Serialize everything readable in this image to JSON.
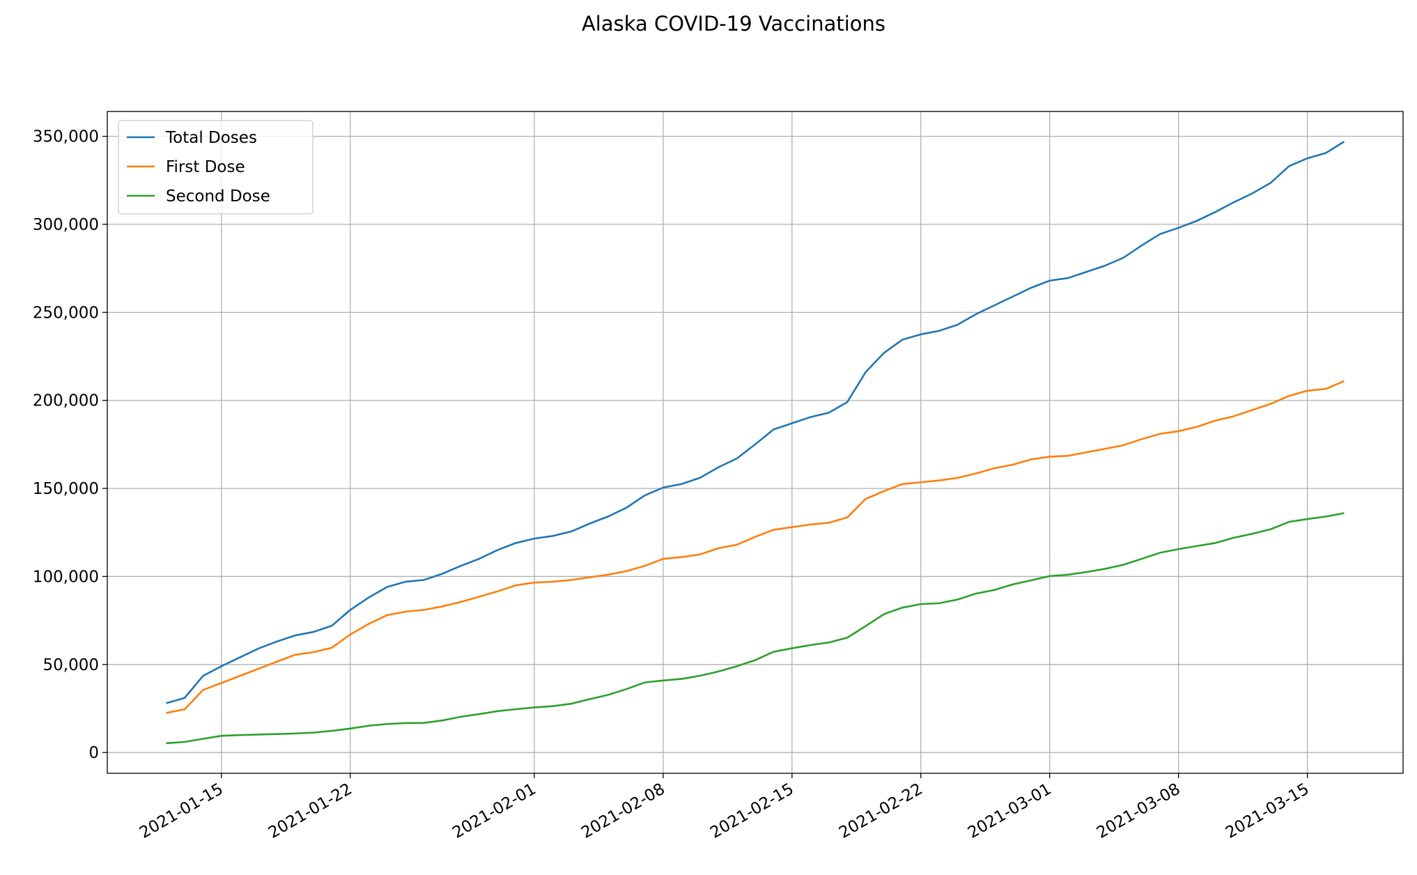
{
  "chart_data": {
    "type": "line",
    "title": "Alaska COVID-19 Vaccinations",
    "x": [
      "2021-01-12",
      "2021-01-13",
      "2021-01-14",
      "2021-01-15",
      "2021-01-16",
      "2021-01-17",
      "2021-01-18",
      "2021-01-19",
      "2021-01-20",
      "2021-01-21",
      "2021-01-22",
      "2021-01-23",
      "2021-01-24",
      "2021-01-25",
      "2021-01-26",
      "2021-01-27",
      "2021-01-28",
      "2021-01-29",
      "2021-01-30",
      "2021-01-31",
      "2021-02-01",
      "2021-02-02",
      "2021-02-03",
      "2021-02-04",
      "2021-02-05",
      "2021-02-06",
      "2021-02-07",
      "2021-02-08",
      "2021-02-09",
      "2021-02-10",
      "2021-02-11",
      "2021-02-12",
      "2021-02-13",
      "2021-02-14",
      "2021-02-15",
      "2021-02-16",
      "2021-02-17",
      "2021-02-18",
      "2021-02-19",
      "2021-02-20",
      "2021-02-21",
      "2021-02-22",
      "2021-02-23",
      "2021-02-24",
      "2021-02-25",
      "2021-02-26",
      "2021-02-27",
      "2021-02-28",
      "2021-03-01",
      "2021-03-02",
      "2021-03-03",
      "2021-03-04",
      "2021-03-05",
      "2021-03-06",
      "2021-03-07",
      "2021-03-08",
      "2021-03-09",
      "2021-03-10",
      "2021-03-11",
      "2021-03-12",
      "2021-03-13",
      "2021-03-14",
      "2021-03-15",
      "2021-03-16",
      "2021-03-17"
    ],
    "series": [
      {
        "name": "Total Doses",
        "color": "#1f77b4",
        "values": [
          28000,
          31000,
          43500,
          49000,
          54000,
          59000,
          63000,
          66500,
          68500,
          72000,
          81000,
          88000,
          94000,
          97000,
          98000,
          101500,
          106000,
          110000,
          115000,
          119000,
          121500,
          123000,
          125500,
          130000,
          134000,
          139000,
          146000,
          150500,
          152500,
          156000,
          162000,
          167000,
          175000,
          183500,
          187000,
          190500,
          193000,
          199000,
          216000,
          227000,
          234500,
          237500,
          239500,
          243000,
          249000,
          254000,
          259000,
          264000,
          268000,
          269500,
          273000,
          276500,
          281000,
          288000,
          294500,
          298000,
          302000,
          307000,
          312500,
          317500,
          323500,
          333000,
          337500,
          340500,
          347000
        ]
      },
      {
        "name": "First Dose",
        "color": "#ff7f0e",
        "values": [
          22500,
          24500,
          35500,
          39500,
          43500,
          47500,
          51500,
          55500,
          57000,
          59500,
          67000,
          73000,
          78000,
          80000,
          81000,
          83000,
          85500,
          88500,
          91500,
          95000,
          96500,
          97000,
          98000,
          99500,
          101000,
          103000,
          106000,
          110000,
          111000,
          112500,
          116000,
          118000,
          122500,
          126500,
          128000,
          129500,
          130500,
          133500,
          144000,
          148500,
          152500,
          153500,
          154500,
          156000,
          158500,
          161500,
          163500,
          166500,
          168000,
          168500,
          170500,
          172500,
          174500,
          178000,
          181000,
          182500,
          185000,
          188500,
          191000,
          194500,
          198000,
          202500,
          205500,
          206500,
          211000
        ]
      },
      {
        "name": "Second Dose",
        "color": "#2ca02c",
        "values": [
          5300,
          6000,
          7800,
          9500,
          9900,
          10200,
          10500,
          10800,
          11300,
          12300,
          13600,
          15200,
          16200,
          16700,
          16800,
          18200,
          20300,
          21800,
          23500,
          24600,
          25600,
          26300,
          27700,
          30300,
          32700,
          36000,
          39800,
          40900,
          41800,
          43600,
          46000,
          49000,
          52500,
          57200,
          59200,
          61000,
          62500,
          65200,
          71800,
          78600,
          82300,
          84300,
          84800,
          86900,
          90300,
          92300,
          95500,
          97800,
          100200,
          101000,
          102500,
          104300,
          106600,
          110000,
          113500,
          115500,
          117300,
          119000,
          122000,
          124200,
          126800,
          131000,
          132600,
          134000,
          136000
        ]
      }
    ],
    "xlim": [
      "2021-01-08T19:12:00Z",
      "2021-03-20T04:48:00Z"
    ],
    "xticks": [
      "2021-01-15",
      "2021-01-22",
      "2021-02-01",
      "2021-02-08",
      "2021-02-15",
      "2021-02-22",
      "2021-03-01",
      "2021-03-08",
      "2021-03-15"
    ],
    "ylim": [
      -11800,
      364100
    ],
    "yticks": [
      {
        "value": 0,
        "label": "0"
      },
      {
        "value": 50000,
        "label": "50,000"
      },
      {
        "value": 100000,
        "label": "100,000"
      },
      {
        "value": 150000,
        "label": "150,000"
      },
      {
        "value": 200000,
        "label": "200,000"
      },
      {
        "value": 250000,
        "label": "250,000"
      },
      {
        "value": 300000,
        "label": "300,000"
      },
      {
        "value": 350000,
        "label": "350,000"
      }
    ],
    "grid": true,
    "legend": "upper left"
  }
}
